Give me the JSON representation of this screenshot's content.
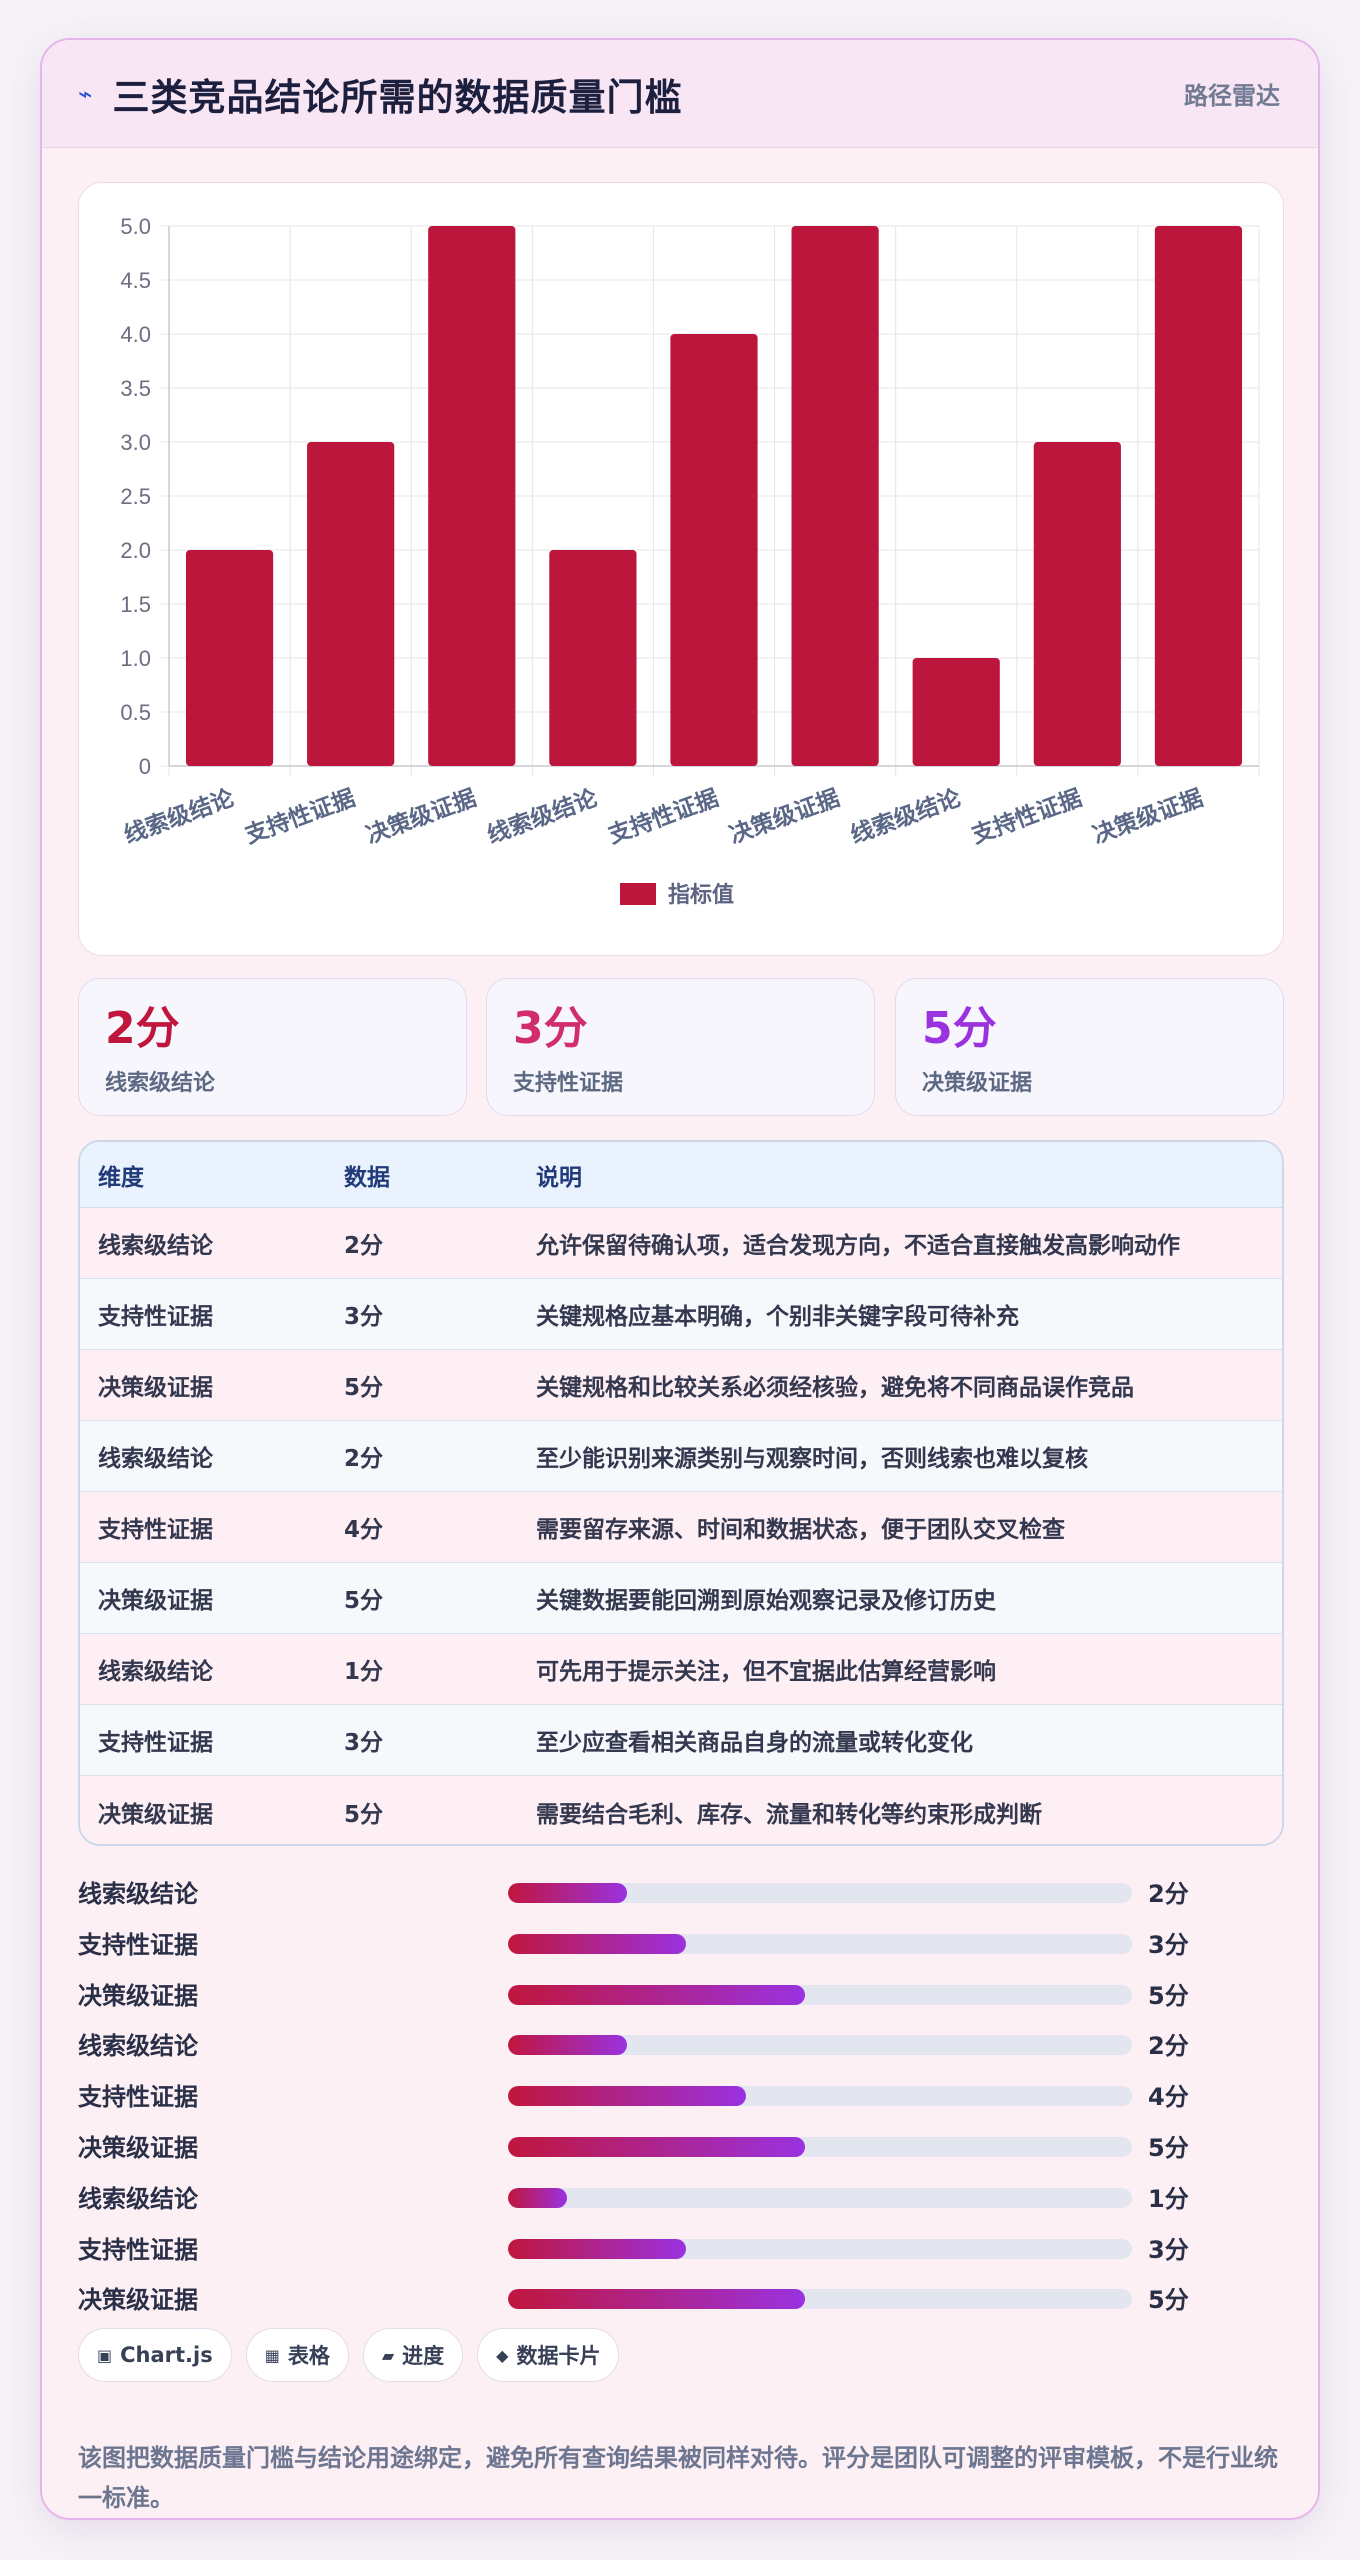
{
  "header": {
    "icon": "bolt-icon",
    "title": "三类竞品结论所需的数据质量门槛",
    "tag": "路径雷达"
  },
  "colors": {
    "bar": "#bd163d",
    "accent_red": "#c0163d",
    "accent_pink": "#d12d6b",
    "accent_purple": "#9b32e0",
    "gradient_end": "#9a32e0"
  },
  "chart_data": {
    "type": "bar",
    "categories": [
      "线索级结论",
      "支持性证据",
      "决策级证据",
      "线索级结论",
      "支持性证据",
      "决策级证据",
      "线索级结论",
      "支持性证据",
      "决策级证据"
    ],
    "series": [
      {
        "name": "指标值",
        "values": [
          2,
          3,
          5,
          2,
          4,
          5,
          1,
          3,
          5
        ]
      }
    ],
    "ylim": [
      0,
      5
    ],
    "yticks": [
      "0",
      "0.5",
      "1.0",
      "1.5",
      "2.0",
      "2.5",
      "3.0",
      "3.5",
      "4.0",
      "4.5",
      "5.0"
    ],
    "grid": true,
    "legend": "bottom"
  },
  "stats": [
    {
      "value": "2分",
      "label": "线索级结论"
    },
    {
      "value": "3分",
      "label": "支持性证据"
    },
    {
      "value": "5分",
      "label": "决策级证据"
    }
  ],
  "table": {
    "headers": [
      "维度",
      "数据",
      "说明"
    ],
    "rows": [
      [
        "线索级结论",
        "2分",
        "允许保留待确认项，适合发现方向，不适合直接触发高影响动作"
      ],
      [
        "支持性证据",
        "3分",
        "关键规格应基本明确，个别非关键字段可待补充"
      ],
      [
        "决策级证据",
        "5分",
        "关键规格和比较关系必须经核验，避免将不同商品误作竞品"
      ],
      [
        "线索级结论",
        "2分",
        "至少能识别来源类别与观察时间，否则线索也难以复核"
      ],
      [
        "支持性证据",
        "4分",
        "需要留存来源、时间和数据状态，便于团队交叉检查"
      ],
      [
        "决策级证据",
        "5分",
        "关键数据要能回溯到原始观察记录及修订历史"
      ],
      [
        "线索级结论",
        "1分",
        "可先用于提示关注，但不宜据此估算经营影响"
      ],
      [
        "支持性证据",
        "3分",
        "至少应查看相关商品自身的流量或转化变化"
      ],
      [
        "决策级证据",
        "5分",
        "需要结合毛利、库存、流量和转化等约束形成判断"
      ]
    ]
  },
  "progress": {
    "max": 10.5,
    "items": [
      {
        "label": "线索级结论",
        "value": 2,
        "text": "2分"
      },
      {
        "label": "支持性证据",
        "value": 3,
        "text": "3分"
      },
      {
        "label": "决策级证据",
        "value": 5,
        "text": "5分"
      },
      {
        "label": "线索级结论",
        "value": 2,
        "text": "2分"
      },
      {
        "label": "支持性证据",
        "value": 4,
        "text": "4分"
      },
      {
        "label": "决策级证据",
        "value": 5,
        "text": "5分"
      },
      {
        "label": "线索级结论",
        "value": 1,
        "text": "1分"
      },
      {
        "label": "支持性证据",
        "value": 3,
        "text": "3分"
      },
      {
        "label": "决策级证据",
        "value": 5,
        "text": "5分"
      }
    ]
  },
  "chips": [
    {
      "icon": "▣",
      "label": "Chart.js"
    },
    {
      "icon": "▦",
      "label": "表格"
    },
    {
      "icon": "▰",
      "label": "进度"
    },
    {
      "icon": "◆",
      "label": "数据卡片"
    }
  ],
  "footer": "该图把数据质量门槛与结论用途绑定，避免所有查询结果被同样对待。评分是团队可调整的评审模板，不是行业统一标准。"
}
